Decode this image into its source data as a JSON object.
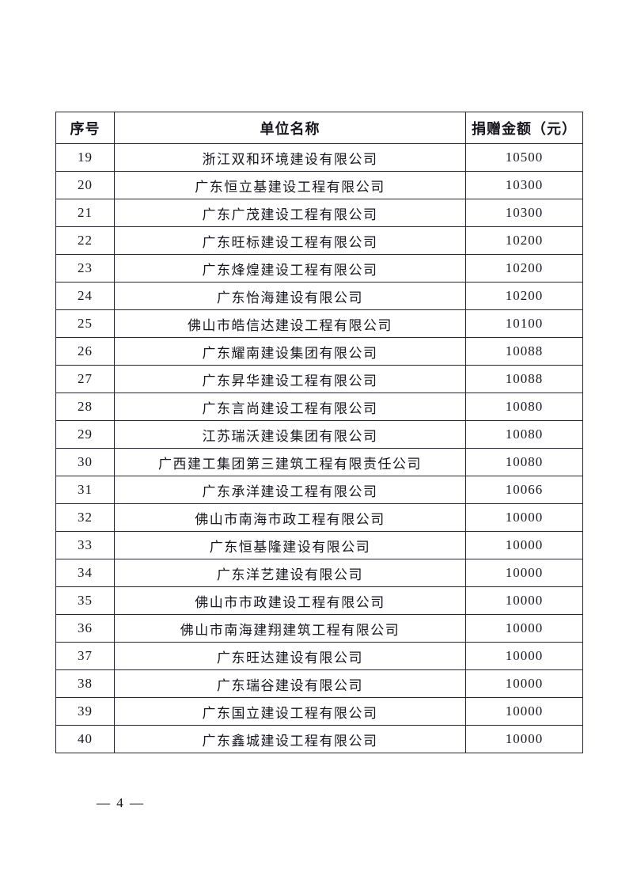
{
  "table": {
    "headers": [
      "序号",
      "单位名称",
      "捐赠金额（元）"
    ],
    "rows": [
      {
        "no": "19",
        "name": "浙江双和环境建设有限公司",
        "amount": "10500"
      },
      {
        "no": "20",
        "name": "广东恒立基建设工程有限公司",
        "amount": "10300"
      },
      {
        "no": "21",
        "name": "广东广茂建设工程有限公司",
        "amount": "10300"
      },
      {
        "no": "22",
        "name": "广东旺标建设工程有限公司",
        "amount": "10200"
      },
      {
        "no": "23",
        "name": "广东烽煌建设工程有限公司",
        "amount": "10200"
      },
      {
        "no": "24",
        "name": "广东怡海建设有限公司",
        "amount": "10200"
      },
      {
        "no": "25",
        "name": "佛山市皓信达建设工程有限公司",
        "amount": "10100"
      },
      {
        "no": "26",
        "name": "广东耀南建设集团有限公司",
        "amount": "10088"
      },
      {
        "no": "27",
        "name": "广东昇华建设工程有限公司",
        "amount": "10088"
      },
      {
        "no": "28",
        "name": "广东言尚建设工程有限公司",
        "amount": "10080"
      },
      {
        "no": "29",
        "name": "江苏瑞沃建设集团有限公司",
        "amount": "10080"
      },
      {
        "no": "30",
        "name": "广西建工集团第三建筑工程有限责任公司",
        "amount": "10080"
      },
      {
        "no": "31",
        "name": "广东承洋建设工程有限公司",
        "amount": "10066"
      },
      {
        "no": "32",
        "name": "佛山市南海市政工程有限公司",
        "amount": "10000"
      },
      {
        "no": "33",
        "name": "广东恒基隆建设有限公司",
        "amount": "10000"
      },
      {
        "no": "34",
        "name": "广东洋艺建设有限公司",
        "amount": "10000"
      },
      {
        "no": "35",
        "name": "佛山市市政建设工程有限公司",
        "amount": "10000"
      },
      {
        "no": "36",
        "name": "佛山市南海建翔建筑工程有限公司",
        "amount": "10000"
      },
      {
        "no": "37",
        "name": "广东旺达建设有限公司",
        "amount": "10000"
      },
      {
        "no": "38",
        "name": "广东瑞谷建设有限公司",
        "amount": "10000"
      },
      {
        "no": "39",
        "name": "广东国立建设工程有限公司",
        "amount": "10000"
      },
      {
        "no": "40",
        "name": "广东鑫城建设工程有限公司",
        "amount": "10000"
      }
    ]
  },
  "footer": {
    "page_number": "— 4 —"
  }
}
